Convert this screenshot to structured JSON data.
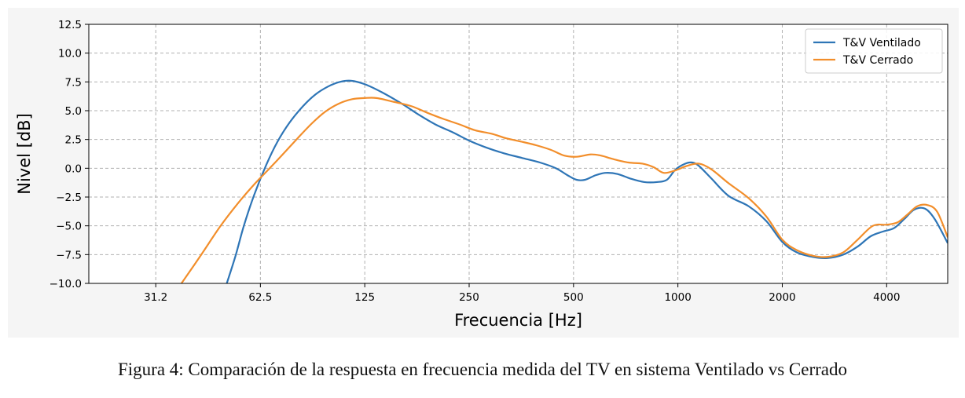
{
  "caption": "Figura 4: Comparación de la respuesta en frecuencia medida del TV en sistema Ventilado vs Cerrado",
  "chart_data": {
    "type": "line",
    "title": "",
    "xlabel": "Frecuencia [Hz]",
    "ylabel": "Nivel [dB]",
    "xscale": "log2",
    "xlim": [
      20,
      6000
    ],
    "ylim": [
      -10,
      12.5
    ],
    "xticks": [
      31.2,
      62.5,
      125,
      250,
      500,
      1000,
      2000,
      4000
    ],
    "xtick_labels": [
      "31.2",
      "62.5",
      "125",
      "250",
      "500",
      "1000",
      "2000",
      "4000"
    ],
    "yticks": [
      -10,
      -7.5,
      -5,
      -2.5,
      0,
      2.5,
      5,
      7.5,
      10,
      12.5
    ],
    "ytick_labels": [
      "−10.0",
      "−7.5",
      "−5.0",
      "−2.5",
      "0.0",
      "2.5",
      "5.0",
      "7.5",
      "10.0",
      "12.5"
    ],
    "grid": true,
    "legend_position": "top-right",
    "series": [
      {
        "name": "T&V Ventilado",
        "color": "#2e75b6",
        "points": [
          [
            50,
            -10
          ],
          [
            53,
            -7.6
          ],
          [
            56,
            -5.0
          ],
          [
            60,
            -2.3
          ],
          [
            65,
            0.3
          ],
          [
            70,
            2.3
          ],
          [
            76,
            4.0
          ],
          [
            83,
            5.4
          ],
          [
            90,
            6.4
          ],
          [
            98,
            7.1
          ],
          [
            106,
            7.5
          ],
          [
            114,
            7.6
          ],
          [
            125,
            7.3
          ],
          [
            140,
            6.6
          ],
          [
            160,
            5.6
          ],
          [
            180,
            4.6
          ],
          [
            200,
            3.8
          ],
          [
            225,
            3.1
          ],
          [
            250,
            2.4
          ],
          [
            280,
            1.8
          ],
          [
            315,
            1.3
          ],
          [
            355,
            0.9
          ],
          [
            400,
            0.5
          ],
          [
            445,
            0.0
          ],
          [
            480,
            -0.6
          ],
          [
            510,
            -1.0
          ],
          [
            540,
            -1.0
          ],
          [
            580,
            -0.6
          ],
          [
            620,
            -0.4
          ],
          [
            670,
            -0.5
          ],
          [
            730,
            -0.9
          ],
          [
            800,
            -1.2
          ],
          [
            870,
            -1.2
          ],
          [
            930,
            -1.0
          ],
          [
            985,
            -0.1
          ],
          [
            1050,
            0.4
          ],
          [
            1100,
            0.5
          ],
          [
            1150,
            0.2
          ],
          [
            1250,
            -0.9
          ],
          [
            1400,
            -2.4
          ],
          [
            1600,
            -3.3
          ],
          [
            1800,
            -4.6
          ],
          [
            2000,
            -6.4
          ],
          [
            2200,
            -7.3
          ],
          [
            2450,
            -7.7
          ],
          [
            2700,
            -7.8
          ],
          [
            3000,
            -7.5
          ],
          [
            3300,
            -6.8
          ],
          [
            3600,
            -5.9
          ],
          [
            3900,
            -5.5
          ],
          [
            4200,
            -5.2
          ],
          [
            4500,
            -4.4
          ],
          [
            4800,
            -3.6
          ],
          [
            5150,
            -3.5
          ],
          [
            5500,
            -4.4
          ],
          [
            6000,
            -6.5
          ]
        ]
      },
      {
        "name": "T&V Cerrado",
        "color": "#f28e2b",
        "points": [
          [
            37,
            -10
          ],
          [
            42,
            -7.6
          ],
          [
            48,
            -5.0
          ],
          [
            54,
            -3.0
          ],
          [
            60,
            -1.4
          ],
          [
            66,
            -0.1
          ],
          [
            73,
            1.3
          ],
          [
            80,
            2.6
          ],
          [
            88,
            3.9
          ],
          [
            96,
            4.9
          ],
          [
            105,
            5.6
          ],
          [
            115,
            6.0
          ],
          [
            125,
            6.1
          ],
          [
            135,
            6.1
          ],
          [
            150,
            5.8
          ],
          [
            170,
            5.4
          ],
          [
            190,
            4.8
          ],
          [
            210,
            4.3
          ],
          [
            235,
            3.8
          ],
          [
            260,
            3.3
          ],
          [
            290,
            3.0
          ],
          [
            320,
            2.6
          ],
          [
            355,
            2.3
          ],
          [
            390,
            2.0
          ],
          [
            430,
            1.6
          ],
          [
            470,
            1.1
          ],
          [
            510,
            1.0
          ],
          [
            560,
            1.2
          ],
          [
            600,
            1.1
          ],
          [
            650,
            0.8
          ],
          [
            720,
            0.5
          ],
          [
            790,
            0.4
          ],
          [
            850,
            0.1
          ],
          [
            910,
            -0.4
          ],
          [
            980,
            -0.2
          ],
          [
            1060,
            0.2
          ],
          [
            1150,
            0.4
          ],
          [
            1250,
            -0.1
          ],
          [
            1400,
            -1.3
          ],
          [
            1600,
            -2.6
          ],
          [
            1800,
            -4.2
          ],
          [
            2000,
            -6.2
          ],
          [
            2200,
            -7.1
          ],
          [
            2450,
            -7.6
          ],
          [
            2700,
            -7.7
          ],
          [
            3000,
            -7.3
          ],
          [
            3300,
            -6.2
          ],
          [
            3650,
            -5.0
          ],
          [
            4000,
            -4.9
          ],
          [
            4300,
            -4.7
          ],
          [
            4600,
            -4.0
          ],
          [
            4900,
            -3.3
          ],
          [
            5250,
            -3.2
          ],
          [
            5600,
            -3.8
          ],
          [
            6000,
            -6.0
          ]
        ]
      }
    ]
  }
}
